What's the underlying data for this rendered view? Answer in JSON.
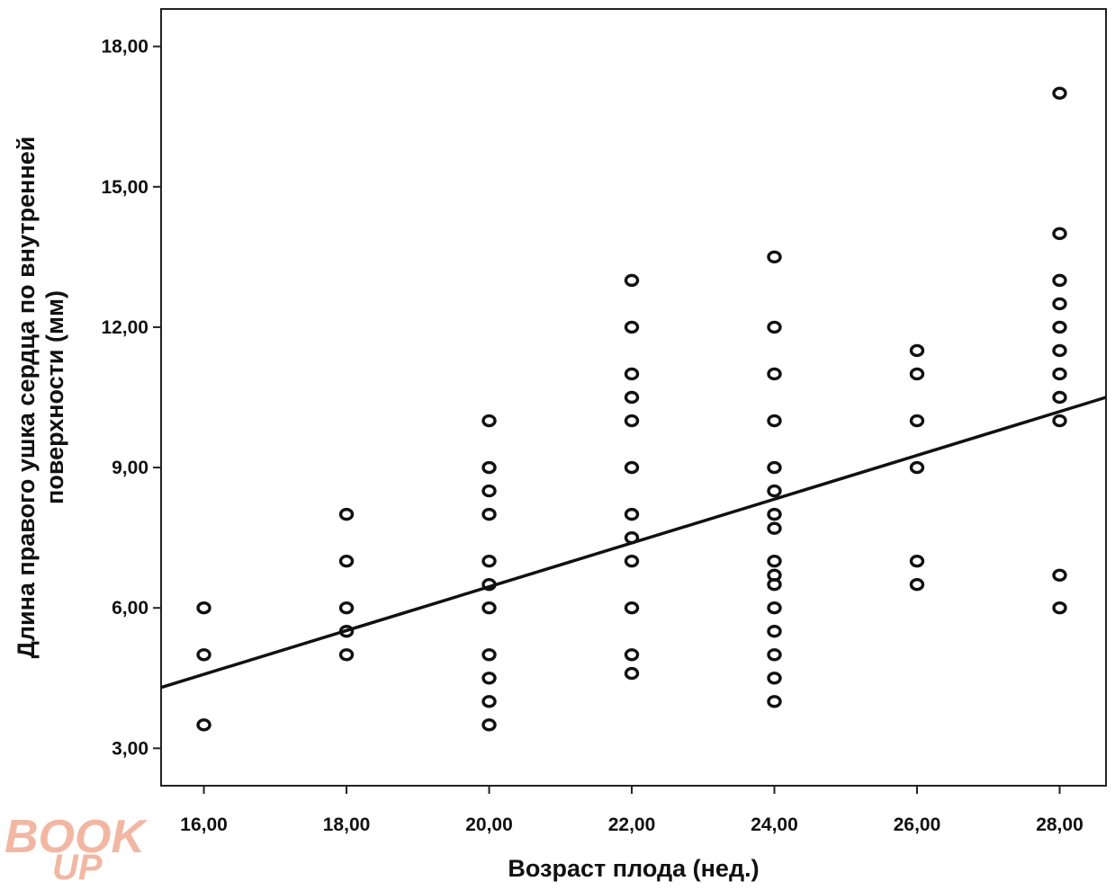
{
  "chart_data": {
    "type": "scatter",
    "xlabel": "Возраст плода (нед.)",
    "ylabel_lines": [
      "Длина правого ушка сердца по внутренней",
      "поверхности (мм)"
    ],
    "xlim": [
      15.4,
      28.65
    ],
    "ylim": [
      2.2,
      18.8
    ],
    "x_ticks": [
      16,
      18,
      20,
      22,
      24,
      26,
      28
    ],
    "x_tick_labels": [
      "16,00",
      "18,00",
      "20,00",
      "22,00",
      "24,00",
      "26,00",
      "28,00"
    ],
    "y_ticks": [
      3,
      6,
      9,
      12,
      15,
      18
    ],
    "y_tick_labels": [
      "3,00",
      "6,00",
      "9,00",
      "12,00",
      "15,00",
      "18,00"
    ],
    "grid": false,
    "marker": "open-circle",
    "fit_line": {
      "x": [
        15.4,
        28.65
      ],
      "y": [
        4.3,
        10.5
      ]
    },
    "points": [
      [
        16,
        6.0
      ],
      [
        16,
        5.0
      ],
      [
        16,
        3.5
      ],
      [
        18,
        8.0
      ],
      [
        18,
        7.0
      ],
      [
        18,
        6.0
      ],
      [
        18,
        5.5
      ],
      [
        18,
        5.0
      ],
      [
        20,
        10.0
      ],
      [
        20,
        9.0
      ],
      [
        20,
        8.5
      ],
      [
        20,
        8.0
      ],
      [
        20,
        7.0
      ],
      [
        20,
        6.5
      ],
      [
        20,
        6.0
      ],
      [
        20,
        5.0
      ],
      [
        20,
        4.5
      ],
      [
        20,
        4.0
      ],
      [
        20,
        3.5
      ],
      [
        22,
        13.0
      ],
      [
        22,
        12.0
      ],
      [
        22,
        11.0
      ],
      [
        22,
        10.5
      ],
      [
        22,
        10.0
      ],
      [
        22,
        9.0
      ],
      [
        22,
        8.0
      ],
      [
        22,
        7.5
      ],
      [
        22,
        7.0
      ],
      [
        22,
        6.0
      ],
      [
        22,
        5.0
      ],
      [
        22,
        4.6
      ],
      [
        24,
        13.5
      ],
      [
        24,
        12.0
      ],
      [
        24,
        11.0
      ],
      [
        24,
        10.0
      ],
      [
        24,
        9.0
      ],
      [
        24,
        8.5
      ],
      [
        24,
        8.0
      ],
      [
        24,
        7.7
      ],
      [
        24,
        7.0
      ],
      [
        24,
        6.7
      ],
      [
        24,
        6.5
      ],
      [
        24,
        6.0
      ],
      [
        24,
        5.5
      ],
      [
        24,
        5.0
      ],
      [
        24,
        4.5
      ],
      [
        24,
        4.0
      ],
      [
        26,
        11.5
      ],
      [
        26,
        11.0
      ],
      [
        26,
        10.0
      ],
      [
        26,
        9.0
      ],
      [
        26,
        7.0
      ],
      [
        26,
        6.5
      ],
      [
        28,
        17.0
      ],
      [
        28,
        14.0
      ],
      [
        28,
        13.0
      ],
      [
        28,
        12.5
      ],
      [
        28,
        12.0
      ],
      [
        28,
        11.5
      ],
      [
        28,
        11.0
      ],
      [
        28,
        10.5
      ],
      [
        28,
        10.0
      ],
      [
        28,
        6.7
      ],
      [
        28,
        6.0
      ]
    ]
  },
  "watermark": {
    "line1": "BOOK",
    "line2": "UP",
    "color": "#f2b7a3"
  }
}
